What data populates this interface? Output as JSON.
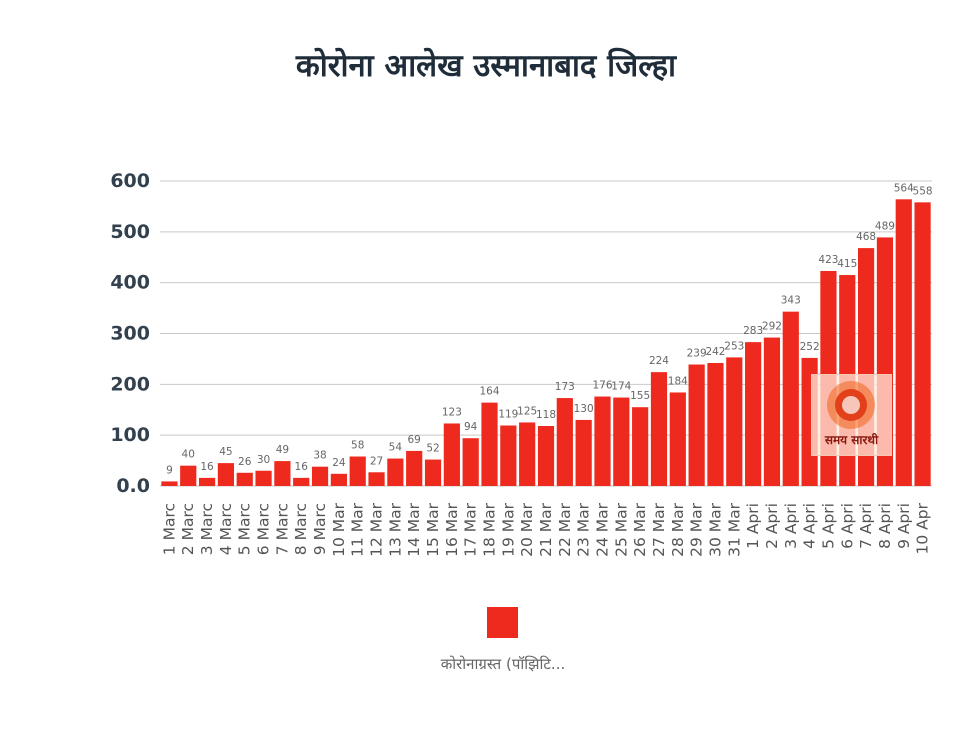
{
  "title": "कोरोना आलेख उस्मानाबाद जिल्हा",
  "colors": {
    "bar": "#ee2a1e",
    "grid": "#c9c9c9",
    "text": "#33404d"
  },
  "legend": {
    "label": "कोरोनाग्रस्त (पॉझिटि..."
  },
  "watermark": {
    "text": "समय सारथी"
  },
  "chart_data": {
    "type": "bar",
    "title": "कोरोना आलेख उस्मानाबाद जिल्हा",
    "ylim": [
      0,
      600
    ],
    "yticks": [
      "0.0",
      "100",
      "200",
      "300",
      "400",
      "500",
      "600"
    ],
    "grid": true,
    "legend_position": "bottom",
    "categories": [
      "1 Marc",
      "2 Marc",
      "3 Marc",
      "4 Marc",
      "5 Marc",
      "6 Marc",
      "7 Marc",
      "8 Marc",
      "9 Marc",
      "10 Mar",
      "11 Mar",
      "12 Mar",
      "13 Mar",
      "14 Mar",
      "15 Mar",
      "16 Mar",
      "17 Mar",
      "18 Mar",
      "19 Mar",
      "20 Mar",
      "21 Mar",
      "22 Mar",
      "23 Mar",
      "24 Mar",
      "25 Mar",
      "26 Mar",
      "27 Mar",
      "28 Mar",
      "29 Mar",
      "30 Mar",
      "31 Mar",
      "1 Apri",
      "2 Apri",
      "3 Apri",
      "4 Apri",
      "5 Apri",
      "6 Apri",
      "7 Apri",
      "8 Apri",
      "9 Apri",
      "10 Apr"
    ],
    "series": [
      {
        "name": "कोरोनाग्रस्त (पॉझिटि...",
        "values": [
          9,
          40,
          16,
          45,
          26,
          30,
          49,
          16,
          38,
          24,
          58,
          27,
          54,
          69,
          52,
          123,
          94,
          164,
          119,
          125,
          118,
          173,
          130,
          176,
          174,
          155,
          224,
          184,
          239,
          242,
          253,
          283,
          292,
          343,
          252,
          423,
          415,
          468,
          489,
          564,
          558
        ]
      }
    ]
  }
}
